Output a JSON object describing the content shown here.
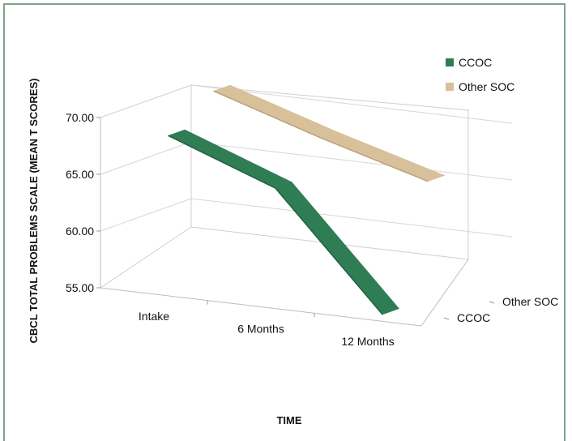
{
  "chart_data": {
    "type": "line",
    "style": "3d-ribbon",
    "categories": [
      "Intake",
      "6 Months",
      "12 Months"
    ],
    "series": [
      {
        "name": "CCOC",
        "values": [
          68.5,
          65.0,
          55.0
        ],
        "color": "#2f7d55"
      },
      {
        "name": "Other SOC",
        "values": [
          71.0,
          68.0,
          65.3
        ],
        "color": "#d7c09a"
      }
    ],
    "depth_labels": [
      "CCOC",
      "Other SOC"
    ],
    "ylabel": "CBCL TOTAL PROBLEMS SCALE (MEAN T SCORES)",
    "xlabel": "TIME",
    "ylim": [
      55,
      70
    ],
    "yticks": [
      "55.00",
      "60.00",
      "65.00",
      "70.00"
    ],
    "grid": true,
    "legend_position": "top-right"
  }
}
